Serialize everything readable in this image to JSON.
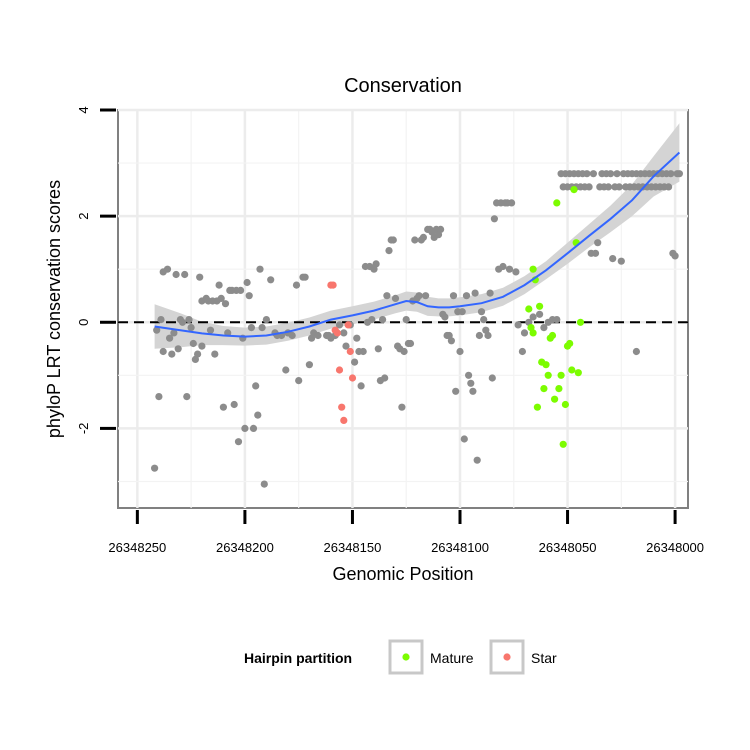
{
  "chart_data": {
    "type": "scatter",
    "title": "Conservation",
    "xlabel": "Genomic Position",
    "ylabel": "phyloP LRT conservation scores",
    "x_reversed": true,
    "xlim": [
      26348259,
      26347994
    ],
    "ylim": [
      -3.5,
      4.0
    ],
    "x_ticks": [
      26348250,
      26348200,
      26348150,
      26348100,
      26348050,
      26348000
    ],
    "x_tick_labels": [
      "26348250",
      "26348200",
      "26348150",
      "26348100",
      "26348050",
      "26348000"
    ],
    "y_ticks": [
      -2,
      0,
      2,
      4
    ],
    "y_tick_labels": [
      "-2",
      "0",
      "2",
      "4"
    ],
    "reference_line": {
      "y": 0,
      "style": "dashed"
    },
    "legend": {
      "title": "Hairpin partition",
      "position": "bottom",
      "entries": [
        {
          "label": "Mature",
          "color": "#7cfc00"
        },
        {
          "label": "Star",
          "color": "#f8766d"
        }
      ]
    },
    "colors": {
      "other": "#8c8c8c",
      "mature": "#7cfc00",
      "star": "#f8766d",
      "smooth": "#3366ff",
      "ribbon": "#d4d4d4"
    },
    "series": [
      {
        "name": "Other",
        "points": [
          [
            26348242,
            -2.75
          ],
          [
            26348240,
            -1.4
          ],
          [
            26348241,
            -0.15
          ],
          [
            26348239,
            0.05
          ],
          [
            26348238,
            -0.55
          ],
          [
            26348238,
            0.95
          ],
          [
            26348236,
            1.0
          ],
          [
            26348235,
            -0.3
          ],
          [
            26348234,
            -0.6
          ],
          [
            26348233,
            -0.2
          ],
          [
            26348232,
            0.9
          ],
          [
            26348231,
            -0.5
          ],
          [
            26348230,
            0.05
          ],
          [
            26348229,
            0.0
          ],
          [
            26348228,
            0.9
          ],
          [
            26348227,
            -1.4
          ],
          [
            26348226,
            0.05
          ],
          [
            26348225,
            -0.1
          ],
          [
            26348224,
            -0.4
          ],
          [
            26348223,
            -0.7
          ],
          [
            26348222,
            -0.6
          ],
          [
            26348221,
            0.85
          ],
          [
            26348220,
            -0.45
          ],
          [
            26348220,
            0.4
          ],
          [
            26348218,
            0.45
          ],
          [
            26348217,
            0.4
          ],
          [
            26348216,
            -0.15
          ],
          [
            26348215,
            0.4
          ],
          [
            26348214,
            -0.6
          ],
          [
            26348213,
            0.4
          ],
          [
            26348212,
            0.7
          ],
          [
            26348211,
            0.45
          ],
          [
            26348210,
            -1.6
          ],
          [
            26348209,
            0.35
          ],
          [
            26348208,
            -0.2
          ],
          [
            26348207,
            0.6
          ],
          [
            26348206,
            0.6
          ],
          [
            26348205,
            -1.55
          ],
          [
            26348204,
            0.6
          ],
          [
            26348203,
            -2.25
          ],
          [
            26348202,
            0.6
          ],
          [
            26348201,
            -0.3
          ],
          [
            26348200,
            -2.0
          ],
          [
            26348199,
            0.75
          ],
          [
            26348198,
            0.5
          ],
          [
            26348197,
            -0.1
          ],
          [
            26348196,
            -2.0
          ],
          [
            26348195,
            -1.2
          ],
          [
            26348194,
            -1.75
          ],
          [
            26348193,
            1.0
          ],
          [
            26348192,
            -0.1
          ],
          [
            26348191,
            -3.05
          ],
          [
            26348190,
            0.05
          ],
          [
            26348188,
            0.8
          ],
          [
            26348186,
            -0.2
          ],
          [
            26348185,
            -0.25
          ],
          [
            26348183,
            -0.25
          ],
          [
            26348181,
            -0.9
          ],
          [
            26348180,
            -0.2
          ],
          [
            26348178,
            -0.25
          ],
          [
            26348176,
            0.7
          ],
          [
            26348175,
            -1.1
          ],
          [
            26348173,
            0.85
          ],
          [
            26348172,
            0.85
          ],
          [
            26348170,
            -0.8
          ],
          [
            26348169,
            -0.3
          ],
          [
            26348168,
            -0.2
          ],
          [
            26348166,
            -0.25
          ],
          [
            26348162,
            -0.25
          ],
          [
            26348161,
            -0.25
          ],
          [
            26348160,
            -0.3
          ],
          [
            26348158,
            -0.25
          ],
          [
            26348156,
            -0.05
          ],
          [
            26348154,
            -0.2
          ],
          [
            26348153,
            -0.45
          ],
          [
            26348151,
            -0.05
          ],
          [
            26348149,
            -0.75
          ],
          [
            26348148,
            -0.3
          ],
          [
            26348147,
            -0.55
          ],
          [
            26348146,
            -1.2
          ],
          [
            26348145,
            -0.55
          ],
          [
            26348144,
            1.05
          ],
          [
            26348143,
            0.0
          ],
          [
            26348142,
            1.05
          ],
          [
            26348141,
            0.05
          ],
          [
            26348140,
            1.0
          ],
          [
            26348139,
            1.1
          ],
          [
            26348138,
            -0.5
          ],
          [
            26348137,
            -1.1
          ],
          [
            26348136,
            0.05
          ],
          [
            26348135,
            -1.05
          ],
          [
            26348134,
            0.5
          ],
          [
            26348133,
            1.35
          ],
          [
            26348132,
            1.55
          ],
          [
            26348131,
            1.55
          ],
          [
            26348130,
            0.45
          ],
          [
            26348129,
            -0.45
          ],
          [
            26348128,
            -0.5
          ],
          [
            26348127,
            -1.6
          ],
          [
            26348126,
            -0.55
          ],
          [
            26348125,
            0.05
          ],
          [
            26348124,
            -0.4
          ],
          [
            26348123,
            -0.4
          ],
          [
            26348122,
            0.4
          ],
          [
            26348121,
            1.55
          ],
          [
            26348120,
            0.45
          ],
          [
            26348119,
            0.5
          ],
          [
            26348118,
            1.55
          ],
          [
            26348117,
            1.6
          ],
          [
            26348116,
            0.5
          ],
          [
            26348115,
            1.75
          ],
          [
            26348114,
            1.75
          ],
          [
            26348113,
            1.7
          ],
          [
            26348112,
            1.6
          ],
          [
            26348111,
            1.75
          ],
          [
            26348110,
            1.65
          ],
          [
            26348109,
            1.75
          ],
          [
            26348108,
            0.15
          ],
          [
            26348107,
            0.1
          ],
          [
            26348106,
            -0.25
          ],
          [
            26348105,
            -0.25
          ],
          [
            26348104,
            -0.35
          ],
          [
            26348103,
            0.5
          ],
          [
            26348102,
            -1.3
          ],
          [
            26348101,
            0.2
          ],
          [
            26348100,
            -0.55
          ],
          [
            26348099,
            0.2
          ],
          [
            26348098,
            -2.2
          ],
          [
            26348097,
            0.5
          ],
          [
            26348096,
            -1.0
          ],
          [
            26348095,
            -1.15
          ],
          [
            26348094,
            -1.3
          ],
          [
            26348093,
            0.55
          ],
          [
            26348092,
            -2.6
          ],
          [
            26348091,
            -0.25
          ],
          [
            26348090,
            0.2
          ],
          [
            26348089,
            0.05
          ],
          [
            26348088,
            -0.15
          ],
          [
            26348087,
            -0.25
          ],
          [
            26348086,
            0.55
          ],
          [
            26348085,
            -1.05
          ],
          [
            26348084,
            1.95
          ],
          [
            26348083,
            2.25
          ],
          [
            26348082,
            1.0
          ],
          [
            26348081,
            2.25
          ],
          [
            26348080,
            1.05
          ],
          [
            26348079,
            2.25
          ],
          [
            26348078,
            2.25
          ],
          [
            26348077,
            1.0
          ],
          [
            26348076,
            2.25
          ],
          [
            26348074,
            0.95
          ],
          [
            26348073,
            -0.05
          ],
          [
            26348071,
            -0.55
          ],
          [
            26348070,
            -0.2
          ],
          [
            26348068,
            0.0
          ],
          [
            26348066,
            0.1
          ],
          [
            26348063,
            0.15
          ],
          [
            26348061,
            -0.1
          ],
          [
            26348059,
            0.0
          ],
          [
            26348057,
            0.05
          ],
          [
            26348055,
            0.05
          ],
          [
            26348053,
            2.8
          ],
          [
            26348052,
            2.55
          ],
          [
            26348051,
            2.8
          ],
          [
            26348050,
            2.55
          ],
          [
            26348049,
            2.8
          ],
          [
            26348048,
            2.55
          ],
          [
            26348047,
            2.8
          ],
          [
            26348046,
            2.55
          ],
          [
            26348045,
            2.8
          ],
          [
            26348044,
            2.55
          ],
          [
            26348043,
            2.8
          ],
          [
            26348042,
            2.55
          ],
          [
            26348041,
            2.8
          ],
          [
            26348040,
            2.55
          ],
          [
            26348039,
            1.3
          ],
          [
            26348038,
            2.8
          ],
          [
            26348037,
            1.3
          ],
          [
            26348036,
            1.5
          ],
          [
            26348035,
            2.55
          ],
          [
            26348034,
            2.8
          ],
          [
            26348033,
            2.55
          ],
          [
            26348032,
            2.8
          ],
          [
            26348031,
            2.55
          ],
          [
            26348030,
            2.8
          ],
          [
            26348029,
            1.2
          ],
          [
            26348028,
            2.55
          ],
          [
            26348027,
            2.8
          ],
          [
            26348026,
            2.55
          ],
          [
            26348025,
            1.15
          ],
          [
            26348024,
            2.8
          ],
          [
            26348023,
            2.55
          ],
          [
            26348022,
            2.8
          ],
          [
            26348021,
            2.55
          ],
          [
            26348020,
            2.8
          ],
          [
            26348019,
            2.55
          ],
          [
            26348018,
            2.8
          ],
          [
            26348017,
            2.55
          ],
          [
            26348016,
            2.8
          ],
          [
            26348015,
            2.55
          ],
          [
            26348014,
            2.8
          ],
          [
            26348013,
            2.55
          ],
          [
            26348012,
            2.8
          ],
          [
            26348011,
            2.55
          ],
          [
            26348010,
            2.8
          ],
          [
            26348009,
            2.55
          ],
          [
            26348008,
            2.8
          ],
          [
            26348007,
            2.55
          ],
          [
            26348006,
            2.8
          ],
          [
            26348005,
            2.55
          ],
          [
            26348004,
            2.8
          ],
          [
            26348003,
            2.55
          ],
          [
            26348002,
            2.8
          ],
          [
            26348001,
            1.3
          ],
          [
            26348000,
            1.25
          ],
          [
            26347999,
            2.8
          ],
          [
            26347998,
            2.8
          ],
          [
            26348018,
            -0.55
          ]
        ]
      },
      {
        "name": "Mature",
        "points": [
          [
            26348066,
            1.0
          ],
          [
            26348065,
            0.8
          ],
          [
            26348064,
            -1.6
          ],
          [
            26348063,
            0.3
          ],
          [
            26348062,
            -0.75
          ],
          [
            26348061,
            -1.25
          ],
          [
            26348060,
            -0.8
          ],
          [
            26348059,
            -1.0
          ],
          [
            26348058,
            -0.3
          ],
          [
            26348057,
            -0.25
          ],
          [
            26348056,
            -1.45
          ],
          [
            26348055,
            2.25
          ],
          [
            26348054,
            -1.25
          ],
          [
            26348053,
            -1.0
          ],
          [
            26348052,
            -2.3
          ],
          [
            26348051,
            -1.55
          ],
          [
            26348050,
            -0.45
          ],
          [
            26348049,
            -0.4
          ],
          [
            26348048,
            -0.9
          ],
          [
            26348047,
            2.5
          ],
          [
            26348046,
            1.5
          ],
          [
            26348045,
            -0.95
          ],
          [
            26348044,
            0.0
          ],
          [
            26348068,
            0.25
          ],
          [
            26348067,
            -0.1
          ],
          [
            26348066,
            -0.2
          ]
        ]
      },
      {
        "name": "Star",
        "points": [
          [
            26348160,
            0.7
          ],
          [
            26348159,
            0.7
          ],
          [
            26348158,
            -0.15
          ],
          [
            26348157,
            -0.2
          ],
          [
            26348156,
            -0.9
          ],
          [
            26348155,
            -1.6
          ],
          [
            26348154,
            -1.85
          ],
          [
            26348152,
            -0.05
          ],
          [
            26348151,
            -0.55
          ],
          [
            26348150,
            -1.05
          ]
        ]
      },
      {
        "name": "Smooth fit",
        "line": [
          [
            26348242,
            -0.08
          ],
          [
            26348230,
            -0.15
          ],
          [
            26348220,
            -0.21
          ],
          [
            26348210,
            -0.25
          ],
          [
            26348200,
            -0.27
          ],
          [
            26348190,
            -0.25
          ],
          [
            26348180,
            -0.18
          ],
          [
            26348170,
            -0.08
          ],
          [
            26348160,
            0.05
          ],
          [
            26348150,
            0.13
          ],
          [
            26348140,
            0.22
          ],
          [
            26348130,
            0.34
          ],
          [
            26348125,
            0.4
          ],
          [
            26348120,
            0.38
          ],
          [
            26348115,
            0.3
          ],
          [
            26348110,
            0.28
          ],
          [
            26348105,
            0.28
          ],
          [
            26348100,
            0.3
          ],
          [
            26348090,
            0.36
          ],
          [
            26348080,
            0.48
          ],
          [
            26348070,
            0.7
          ],
          [
            26348060,
            0.98
          ],
          [
            26348050,
            1.3
          ],
          [
            26348040,
            1.63
          ],
          [
            26348030,
            1.95
          ],
          [
            26348020,
            2.3
          ],
          [
            26348010,
            2.75
          ],
          [
            26347998,
            3.2
          ]
        ],
        "ribbon_halfwidth": [
          0.42,
          0.32,
          0.22,
          0.18,
          0.17,
          0.17,
          0.17,
          0.17,
          0.17,
          0.17,
          0.17,
          0.17,
          0.18,
          0.18,
          0.18,
          0.17,
          0.17,
          0.17,
          0.17,
          0.17,
          0.17,
          0.17,
          0.2,
          0.22,
          0.25,
          0.3,
          0.38,
          0.55
        ]
      }
    ]
  }
}
